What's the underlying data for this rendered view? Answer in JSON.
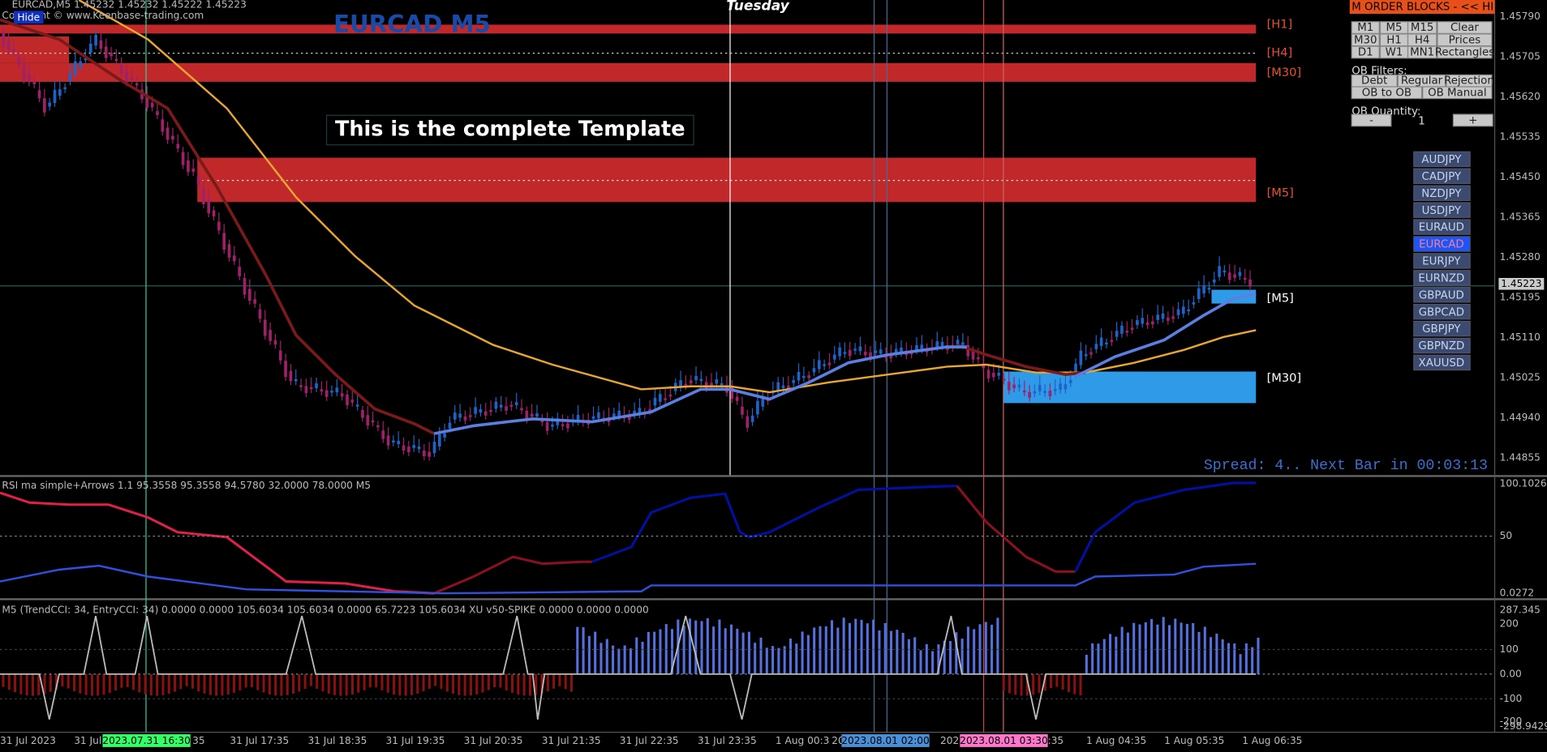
{
  "header": {
    "symbol_info": "EURCAD,M5  1.45232 1.45232 1.45222 1.45223",
    "copyright": "Copyright © www.Keenbase-trading.com",
    "hide_button": "Hide",
    "title": "EURCAD M5",
    "day_label": "Tuesday",
    "template_note": "This is the complete Template"
  },
  "zones": [
    {
      "label": "[H1]",
      "color": "#e8502a"
    },
    {
      "label": "[H4]",
      "color": "#e8502a"
    },
    {
      "label": "[M30]",
      "color": "#e8502a"
    },
    {
      "label": "[M5]",
      "color": "#e8502a"
    },
    {
      "label": "[M5]",
      "color": "#ffffff"
    },
    {
      "label": "[M30]",
      "color": "#ffffff"
    }
  ],
  "price_axis": [
    "1.45790",
    "1.45705",
    "1.45620",
    "1.45535",
    "1.45450",
    "1.45365",
    "1.45280",
    "1.45195",
    "1.45110",
    "1.45025",
    "1.44940",
    "1.44855"
  ],
  "current_price": "1.45223",
  "spread_text": "Spread: 4.. Next Bar in 00:03:13",
  "ob_panel": {
    "header": "M ORDER BLOCKS - << HI",
    "timeframes": [
      "M1",
      "M5",
      "M15",
      "Clear",
      "M30",
      "H1",
      "H4",
      "Prices",
      "D1",
      "W1",
      "MN1",
      "Rectangles"
    ],
    "filters_label": "OB Filters:",
    "filters": [
      "Debt",
      "Regular",
      "Rejection",
      "OB to OB",
      "OB Manual"
    ],
    "quantity_label": "OB Quantity:",
    "minus": "-",
    "quantity": "1",
    "plus": "+"
  },
  "symbols": [
    {
      "label": "AUDJPY",
      "active": false
    },
    {
      "label": "CADJPY",
      "active": false
    },
    {
      "label": "NZDJPY",
      "active": false
    },
    {
      "label": "USDJPY",
      "active": false
    },
    {
      "label": "EURAUD",
      "active": false
    },
    {
      "label": "EURCAD",
      "active": true
    },
    {
      "label": "EURJPY",
      "active": false
    },
    {
      "label": "EURNZD",
      "active": false
    },
    {
      "label": "GBPAUD",
      "active": false
    },
    {
      "label": "GBPCAD",
      "active": false
    },
    {
      "label": "GBPJPY",
      "active": false
    },
    {
      "label": "GBPNZD",
      "active": false
    },
    {
      "label": "XAUUSD",
      "active": false
    }
  ],
  "rsi_panel": {
    "header": "RSI ma simple+Arrows 1.1 95.3558 95.3558 94.5780 32.0000 78.0000  M5",
    "axis": [
      "100.1026",
      "50",
      "0.0272"
    ]
  },
  "cci_panel": {
    "header": "M5 (TrendCCI: 34, EntryCCI: 34)  0.0000 0.0000 105.6034 105.6034 0.0000 65.7223 105.6034  XU v50-SPIKE 0.0000 0.0000 0.0000",
    "axis": [
      "287.345",
      "200",
      "100",
      "0.00",
      "-100",
      "-200",
      "-298.9429"
    ]
  },
  "time_axis": [
    "31 Jul 2023",
    "31 Jul",
    "35",
    "31 Jul 17:35",
    "31 Jul 18:35",
    "31 Jul 19:35",
    "31 Jul 20:35",
    "31 Jul 21:35",
    "31 Jul 22:35",
    "31 Jul 23:35",
    "1 Aug 00:3",
    "20",
    "202",
    ":35",
    "1 Aug 04:35",
    "1 Aug 05:35",
    "1 Aug 06:35"
  ],
  "time_highlights": [
    {
      "label": "2023.07.31 16:30",
      "color": "#33ff66"
    },
    {
      "label": "2023.08.01 02:00",
      "color": "#4a90d9"
    },
    {
      "label": "2023.08.01 03:30",
      "color": "#ff77cc"
    }
  ]
}
